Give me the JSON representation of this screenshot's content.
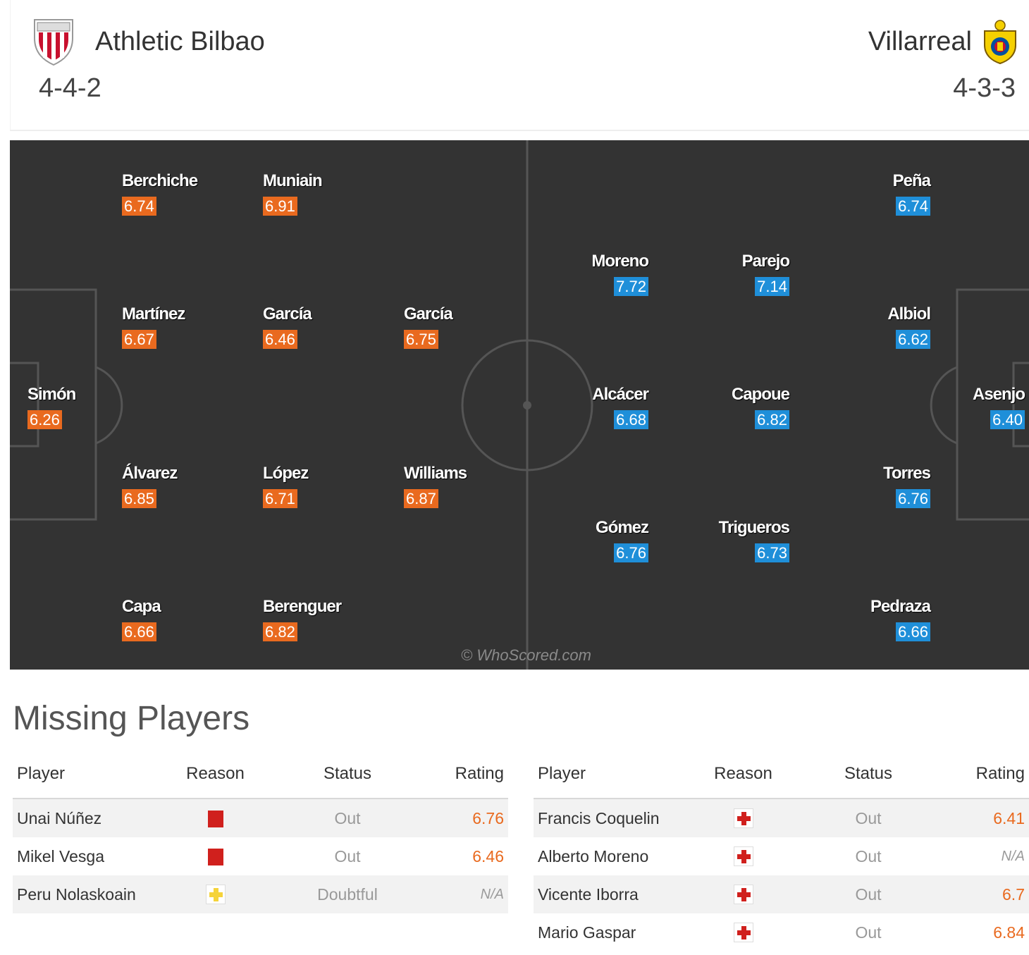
{
  "home": {
    "name": "Athletic Bilbao",
    "formation": "4-4-2",
    "crest_icon": "athletic-bilbao-crest-icon",
    "rating_color": "#e96a1f",
    "players": [
      {
        "name": "Berchiche",
        "rating": "6.74"
      },
      {
        "name": "Muniain",
        "rating": "6.91"
      },
      {
        "name": "Martínez",
        "rating": "6.67"
      },
      {
        "name": "García",
        "rating": "6.46"
      },
      {
        "name": "García",
        "rating": "6.75"
      },
      {
        "name": "Simón",
        "rating": "6.26"
      },
      {
        "name": "Álvarez",
        "rating": "6.85"
      },
      {
        "name": "López",
        "rating": "6.71"
      },
      {
        "name": "Williams",
        "rating": "6.87"
      },
      {
        "name": "Capa",
        "rating": "6.66"
      },
      {
        "name": "Berenguer",
        "rating": "6.82"
      }
    ]
  },
  "away": {
    "name": "Villarreal",
    "formation": "4-3-3",
    "crest_icon": "villarreal-crest-icon",
    "rating_color": "#1f8fd9",
    "players": [
      {
        "name": "Peña",
        "rating": "6.74"
      },
      {
        "name": "Moreno",
        "rating": "7.72"
      },
      {
        "name": "Parejo",
        "rating": "7.14"
      },
      {
        "name": "Albiol",
        "rating": "6.62"
      },
      {
        "name": "Alcácer",
        "rating": "6.68"
      },
      {
        "name": "Capoue",
        "rating": "6.82"
      },
      {
        "name": "Asenjo",
        "rating": "6.40"
      },
      {
        "name": "Torres",
        "rating": "6.76"
      },
      {
        "name": "Gómez",
        "rating": "6.76"
      },
      {
        "name": "Trigueros",
        "rating": "6.73"
      },
      {
        "name": "Pedraza",
        "rating": "6.66"
      }
    ]
  },
  "watermark": "© WhoScored.com",
  "missing": {
    "title": "Missing Players",
    "headers": {
      "player": "Player",
      "reason": "Reason",
      "status": "Status",
      "rating": "Rating"
    },
    "home": [
      {
        "player": "Unai Núñez",
        "reason_icon": "red-card-icon",
        "status": "Out",
        "rating": "6.76"
      },
      {
        "player": "Mikel Vesga",
        "reason_icon": "red-card-icon",
        "status": "Out",
        "rating": "6.46"
      },
      {
        "player": "Peru Nolaskoain",
        "reason_icon": "doubtful-cross-icon",
        "status": "Doubtful",
        "rating": "N/A"
      }
    ],
    "away": [
      {
        "player": "Francis Coquelin",
        "reason_icon": "injury-cross-icon",
        "status": "Out",
        "rating": "6.41"
      },
      {
        "player": "Alberto Moreno",
        "reason_icon": "injury-cross-icon",
        "status": "Out",
        "rating": "N/A"
      },
      {
        "player": "Vicente Iborra",
        "reason_icon": "injury-cross-icon",
        "status": "Out",
        "rating": "6.7"
      },
      {
        "player": "Mario Gaspar",
        "reason_icon": "injury-cross-icon",
        "status": "Out",
        "rating": "6.84"
      }
    ]
  }
}
